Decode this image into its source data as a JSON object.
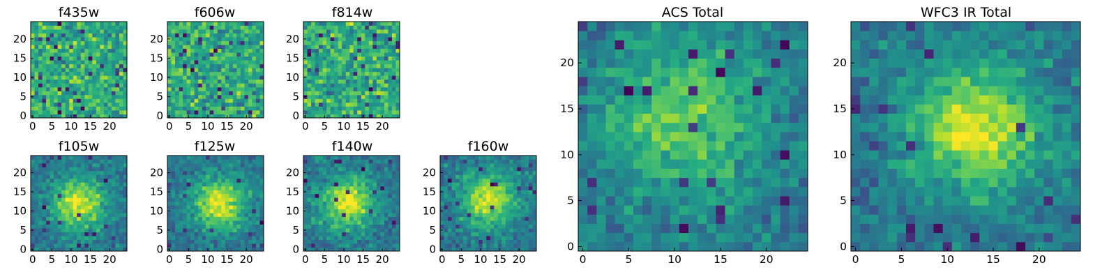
{
  "chart_data": [
    {
      "type": "heatmap",
      "title": "f435w",
      "size": 25,
      "xticks": [
        0,
        5,
        10,
        15,
        20
      ],
      "yticks": [
        0,
        5,
        10,
        15,
        20
      ],
      "xlim": [
        0,
        24
      ],
      "ylim": [
        0,
        24
      ],
      "colormap": "viridis",
      "pattern": "noise"
    },
    {
      "type": "heatmap",
      "title": "f606w",
      "size": 25,
      "xticks": [
        0,
        5,
        10,
        15,
        20
      ],
      "yticks": [
        0,
        5,
        10,
        15,
        20
      ],
      "xlim": [
        0,
        24
      ],
      "ylim": [
        0,
        24
      ],
      "colormap": "viridis",
      "pattern": "noise"
    },
    {
      "type": "heatmap",
      "title": "f814w",
      "size": 25,
      "xticks": [
        0,
        5,
        10,
        15,
        20
      ],
      "yticks": [
        0,
        5,
        10,
        15,
        20
      ],
      "xlim": [
        0,
        24
      ],
      "ylim": [
        0,
        24
      ],
      "colormap": "viridis",
      "pattern": "noise"
    },
    {
      "type": "heatmap",
      "title": "f105w",
      "size": 25,
      "xticks": [
        0,
        5,
        10,
        15,
        20
      ],
      "yticks": [
        0,
        5,
        10,
        15,
        20
      ],
      "xlim": [
        0,
        24
      ],
      "ylim": [
        0,
        24
      ],
      "colormap": "viridis",
      "pattern": "source",
      "center": [
        12,
        12
      ]
    },
    {
      "type": "heatmap",
      "title": "f125w",
      "size": 25,
      "xticks": [
        0,
        5,
        10,
        15,
        20
      ],
      "yticks": [
        0,
        5,
        10,
        15,
        20
      ],
      "xlim": [
        0,
        24
      ],
      "ylim": [
        0,
        24
      ],
      "colormap": "viridis",
      "pattern": "source",
      "center": [
        13,
        12
      ]
    },
    {
      "type": "heatmap",
      "title": "f140w",
      "size": 25,
      "xticks": [
        0,
        5,
        10,
        15,
        20
      ],
      "yticks": [
        0,
        5,
        10,
        15,
        20
      ],
      "xlim": [
        0,
        24
      ],
      "ylim": [
        0,
        24
      ],
      "colormap": "viridis",
      "pattern": "source",
      "center": [
        11,
        12
      ]
    },
    {
      "type": "heatmap",
      "title": "f160w",
      "size": 25,
      "xticks": [
        0,
        5,
        10,
        15,
        20
      ],
      "yticks": [
        0,
        5,
        10,
        15,
        20
      ],
      "xlim": [
        0,
        24
      ],
      "ylim": [
        0,
        24
      ],
      "colormap": "viridis",
      "pattern": "source",
      "center": [
        12,
        13
      ]
    },
    {
      "type": "heatmap",
      "title": "ACS Total",
      "size": 25,
      "xticks": [
        0,
        5,
        10,
        15,
        20
      ],
      "yticks": [
        0,
        5,
        10,
        15,
        20
      ],
      "xlim": [
        0,
        24
      ],
      "ylim": [
        0,
        24
      ],
      "colormap": "viridis",
      "pattern": "weak-source",
      "center": [
        11,
        14
      ]
    },
    {
      "type": "heatmap",
      "title": "WFC3 IR Total",
      "size": 25,
      "xticks": [
        0,
        5,
        10,
        15,
        20
      ],
      "yticks": [
        0,
        5,
        10,
        15,
        20
      ],
      "xlim": [
        0,
        24
      ],
      "ylim": [
        0,
        24
      ],
      "colormap": "viridis",
      "pattern": "source",
      "center": [
        13,
        13
      ]
    }
  ]
}
